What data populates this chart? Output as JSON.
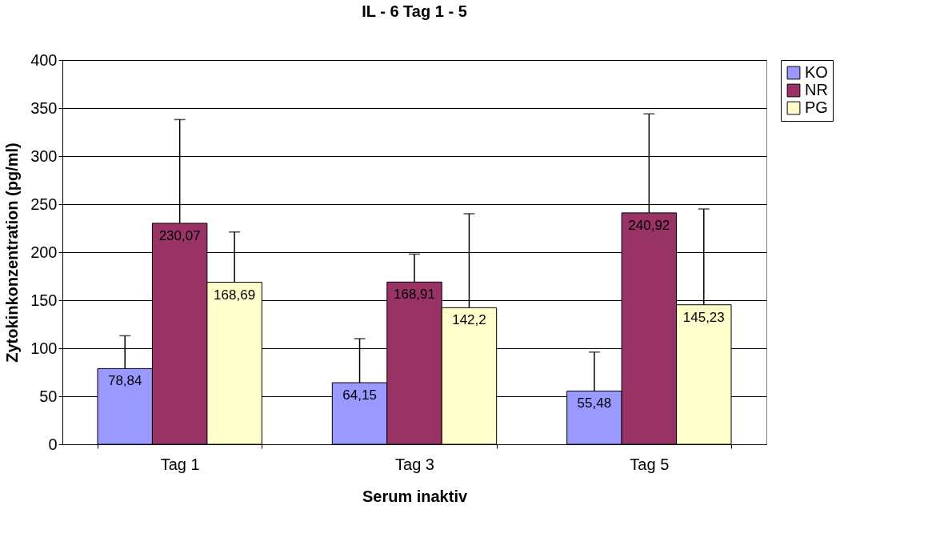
{
  "chart_data": {
    "type": "bar",
    "title": "IL - 6 Tag 1 - 5",
    "xlabel": "Serum inaktiv",
    "ylabel": "Zytokinkonzentration (pg/ml)",
    "categories": [
      "Tag 1",
      "Tag 3",
      "Tag 5"
    ],
    "series": [
      {
        "name": "KO",
        "color": "#9999ff",
        "values": [
          78.84,
          64.15,
          55.48
        ],
        "value_labels": [
          "78,84",
          "64,15",
          "55,48"
        ],
        "errors": [
          [
            78.84,
            113
          ],
          [
            64.15,
            110
          ],
          [
            55.48,
            96
          ]
        ]
      },
      {
        "name": "NR",
        "color": "#993366",
        "values": [
          230.07,
          168.91,
          240.92
        ],
        "value_labels": [
          "230,07",
          "168,91",
          "240,92"
        ],
        "errors": [
          [
            230.07,
            338
          ],
          [
            168.91,
            198
          ],
          [
            240.92,
            344
          ]
        ]
      },
      {
        "name": "PG",
        "color": "#ffffcc",
        "values": [
          168.69,
          142.2,
          145.23
        ],
        "value_labels": [
          "168,69",
          "142,2",
          "145,23"
        ],
        "errors": [
          [
            168.69,
            221
          ],
          [
            142.2,
            240
          ],
          [
            145.23,
            245
          ]
        ]
      }
    ],
    "ylim": [
      0,
      400
    ],
    "yticks": [
      0,
      50,
      100,
      150,
      200,
      250,
      300,
      350,
      400
    ],
    "grid": "y",
    "legend": "right"
  }
}
